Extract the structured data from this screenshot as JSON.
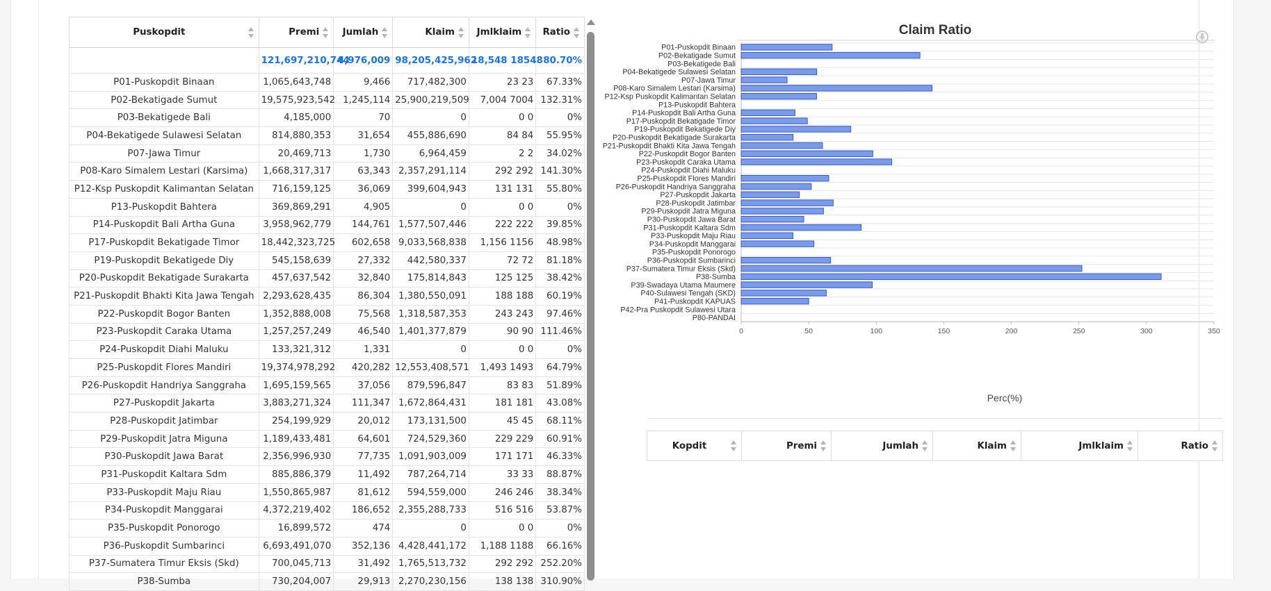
{
  "main_table": {
    "headers": [
      "Puskopdit",
      "Premi",
      "Jumlah",
      "Klaim",
      "Jmlklaim",
      "Ratio"
    ],
    "total": {
      "premi": "121,697,210,744",
      "jumlah": "4,976,009",
      "klaim": "98,205,425,962",
      "jmlklaim": "18,548 18548",
      "ratio": "80.70%"
    },
    "rows": [
      {
        "name": "P01-Puskopdit Binaan",
        "premi": "1,065,643,748",
        "jumlah": "9,466",
        "klaim": "717,482,300",
        "jmlklaim": "23 23",
        "ratio": "67.33%"
      },
      {
        "name": "P02-Bekatigade Sumut",
        "premi": "19,575,923,542",
        "jumlah": "1,245,114",
        "klaim": "25,900,219,509",
        "jmlklaim": "7,004 7004",
        "ratio": "132.31%"
      },
      {
        "name": "P03-Bekatigede Bali",
        "premi": "4,185,000",
        "jumlah": "70",
        "klaim": "0",
        "jmlklaim": "0 0",
        "ratio": "0%"
      },
      {
        "name": "P04-Bekatigede Sulawesi Selatan",
        "premi": "814,880,353",
        "jumlah": "31,654",
        "klaim": "455,886,690",
        "jmlklaim": "84 84",
        "ratio": "55.95%"
      },
      {
        "name": "P07-Jawa Timur",
        "premi": "20,469,713",
        "jumlah": "1,730",
        "klaim": "6,964,459",
        "jmlklaim": "2 2",
        "ratio": "34.02%"
      },
      {
        "name": "P08-Karo Simalem Lestari (Karsima)",
        "premi": "1,668,317,317",
        "jumlah": "63,343",
        "klaim": "2,357,291,114",
        "jmlklaim": "292 292",
        "ratio": "141.30%"
      },
      {
        "name": "P12-Ksp Puskopdit Kalimantan Selatan",
        "premi": "716,159,125",
        "jumlah": "36,069",
        "klaim": "399,604,943",
        "jmlklaim": "131 131",
        "ratio": "55.80%"
      },
      {
        "name": "P13-Puskopdit Bahtera",
        "premi": "369,869,291",
        "jumlah": "4,905",
        "klaim": "0",
        "jmlklaim": "0 0",
        "ratio": "0%"
      },
      {
        "name": "P14-Puskopdit Bali Artha Guna",
        "premi": "3,958,962,779",
        "jumlah": "144,761",
        "klaim": "1,577,507,446",
        "jmlklaim": "222 222",
        "ratio": "39.85%"
      },
      {
        "name": "P17-Puskopdit Bekatigade Timor",
        "premi": "18,442,323,725",
        "jumlah": "602,658",
        "klaim": "9,033,568,838",
        "jmlklaim": "1,156 1156",
        "ratio": "48.98%"
      },
      {
        "name": "P19-Puskopdit Bekatigede Diy",
        "premi": "545,158,639",
        "jumlah": "27,332",
        "klaim": "442,580,337",
        "jmlklaim": "72 72",
        "ratio": "81.18%"
      },
      {
        "name": "P20-Puskopdit Bekatigade Surakarta",
        "premi": "457,637,542",
        "jumlah": "32,840",
        "klaim": "175,814,843",
        "jmlklaim": "125 125",
        "ratio": "38.42%"
      },
      {
        "name": "P21-Puskopdit Bhakti Kita Jawa Tengah",
        "premi": "2,293,628,435",
        "jumlah": "86,304",
        "klaim": "1,380,550,091",
        "jmlklaim": "188 188",
        "ratio": "60.19%"
      },
      {
        "name": "P22-Puskopdit Bogor Banten",
        "premi": "1,352,888,008",
        "jumlah": "75,568",
        "klaim": "1,318,587,353",
        "jmlklaim": "243 243",
        "ratio": "97.46%"
      },
      {
        "name": "P23-Puskopdit Caraka Utama",
        "premi": "1,257,257,249",
        "jumlah": "46,540",
        "klaim": "1,401,377,879",
        "jmlklaim": "90 90",
        "ratio": "111.46%"
      },
      {
        "name": "P24-Puskopdit Diahi Maluku",
        "premi": "133,321,312",
        "jumlah": "1,331",
        "klaim": "0",
        "jmlklaim": "0 0",
        "ratio": "0%"
      },
      {
        "name": "P25-Puskopdit Flores Mandiri",
        "premi": "19,374,978,292",
        "jumlah": "420,282",
        "klaim": "12,553,408,571",
        "jmlklaim": "1,493 1493",
        "ratio": "64.79%"
      },
      {
        "name": "P26-Puskopdit Handriya Sanggraha",
        "premi": "1,695,159,565",
        "jumlah": "37,056",
        "klaim": "879,596,847",
        "jmlklaim": "83 83",
        "ratio": "51.89%"
      },
      {
        "name": "P27-Puskopdit Jakarta",
        "premi": "3,883,271,324",
        "jumlah": "111,347",
        "klaim": "1,672,864,431",
        "jmlklaim": "181 181",
        "ratio": "43.08%"
      },
      {
        "name": "P28-Puskopdit Jatimbar",
        "premi": "254,199,929",
        "jumlah": "20,012",
        "klaim": "173,131,500",
        "jmlklaim": "45 45",
        "ratio": "68.11%"
      },
      {
        "name": "P29-Puskopdit Jatra Miguna",
        "premi": "1,189,433,481",
        "jumlah": "64,601",
        "klaim": "724,529,360",
        "jmlklaim": "229 229",
        "ratio": "60.91%"
      },
      {
        "name": "P30-Puskopdit Jawa Barat",
        "premi": "2,356,996,930",
        "jumlah": "77,735",
        "klaim": "1,091,903,009",
        "jmlklaim": "171 171",
        "ratio": "46.33%"
      },
      {
        "name": "P31-Puskopdit Kaltara Sdm",
        "premi": "885,886,379",
        "jumlah": "11,492",
        "klaim": "787,264,714",
        "jmlklaim": "33 33",
        "ratio": "88.87%"
      },
      {
        "name": "P33-Puskopdit Maju Riau",
        "premi": "1,550,865,987",
        "jumlah": "81,612",
        "klaim": "594,559,000",
        "jmlklaim": "246 246",
        "ratio": "38.34%"
      },
      {
        "name": "P34-Puskopdit Manggarai",
        "premi": "4,372,219,402",
        "jumlah": "186,652",
        "klaim": "2,355,288,733",
        "jmlklaim": "516 516",
        "ratio": "53.87%"
      },
      {
        "name": "P35-Puskopdit Ponorogo",
        "premi": "16,899,572",
        "jumlah": "474",
        "klaim": "0",
        "jmlklaim": "0 0",
        "ratio": "0%"
      },
      {
        "name": "P36-Puskopdit Sumbarinci",
        "premi": "6,693,491,070",
        "jumlah": "352,136",
        "klaim": "4,428,441,172",
        "jmlklaim": "1,188 1188",
        "ratio": "66.16%"
      },
      {
        "name": "P37-Sumatera Timur Eksis (Skd)",
        "premi": "700,045,713",
        "jumlah": "31,492",
        "klaim": "1,765,513,732",
        "jmlklaim": "292 292",
        "ratio": "252.20%"
      },
      {
        "name": "P38-Sumba",
        "premi": "730,204,007",
        "jumlah": "29,913",
        "klaim": "2,270,230,156",
        "jmlklaim": "138 138",
        "ratio": "310.90%"
      }
    ]
  },
  "chart_data": {
    "type": "bar",
    "orientation": "horizontal",
    "title": "Claim Ratio",
    "xlabel": "Perc(%)",
    "ylabel": "",
    "xlim": [
      0,
      350
    ],
    "xticks": [
      0,
      50,
      100,
      150,
      200,
      250,
      300,
      350
    ],
    "grid": true,
    "bar_color": "#7b9be6",
    "bar_border": "#3a5bc7",
    "categories": [
      "P01-Puskopdit Binaan",
      "P02-Bekatigade Sumut",
      "P03-Bekatigede Bali",
      "P04-Bekatigede Sulawesi Selatan",
      "P07-Jawa Timur",
      "P08-Karo Simalem Lestari (Karsima)",
      "P12-Ksp Puskopdit Kalimantan Selatan",
      "P13-Puskopdit Bahtera",
      "P14-Puskopdit Bali Artha Guna",
      "P17-Puskopdit Bekatigade Timor",
      "P19-Puskopdit Bekatigede Diy",
      "P20-Puskopdit Bekatigade Surakarta",
      "P21-Puskopdit Bhakti Kita Jawa Tengah",
      "P22-Puskopdit Bogor Banten",
      "P23-Puskopdit Caraka Utama",
      "P24-Puskopdit Diahi Maluku",
      "P25-Puskopdit Flores Mandiri",
      "P26-Puskopdit Handriya Sanggraha",
      "P27-Puskopdit Jakarta",
      "P28-Puskopdit Jatimbar",
      "P29-Puskopdit Jatra Miguna",
      "P30-Puskopdit Jawa Barat",
      "P31-Puskopdit Kaltara Sdm",
      "P33-Puskopdit Maju Riau",
      "P34-Puskopdit Manggarai",
      "P35-Puskopdit Ponorogo",
      "P36-Puskopdit Sumbarinci",
      "P37-Sumatera Timur Eksis (Skd)",
      "P38-Sumba",
      "P39-Swadaya Utama Maumere",
      "P40-Sulawesi Tengah (SKD)",
      "P41-Puskopdit KAPUAS",
      "P42-Pra Puskopdit Sulawesi Utara",
      "P80-PANDAI"
    ],
    "values": [
      67.33,
      132.31,
      0,
      55.95,
      34.02,
      141.3,
      55.8,
      0,
      39.85,
      48.98,
      81.18,
      38.42,
      60.19,
      97.46,
      111.46,
      0,
      64.79,
      51.89,
      43.08,
      68.11,
      60.91,
      46.33,
      88.87,
      38.34,
      53.87,
      0,
      66.16,
      252.2,
      310.9,
      97,
      63,
      50,
      0,
      0
    ]
  },
  "right_table": {
    "headers": [
      "Kopdit",
      "Premi",
      "Jumlah",
      "Klaim",
      "Jmlklaim",
      "Ratio"
    ]
  }
}
